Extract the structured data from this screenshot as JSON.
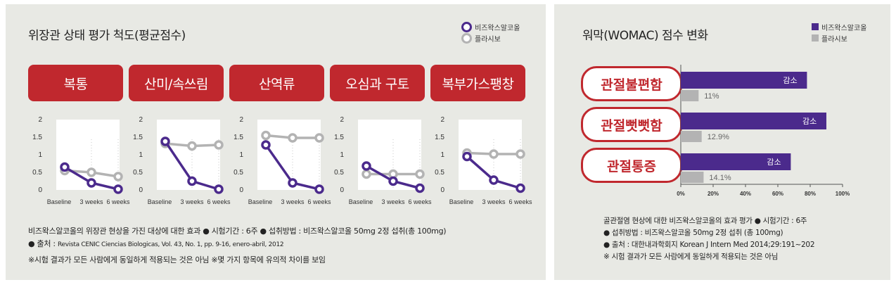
{
  "left": {
    "title": "위장관 상태 평가 척도(평균점수)",
    "legend": [
      {
        "label": "비즈왁스알코올",
        "color": "#4b2a8c"
      },
      {
        "label": "플라시보",
        "color": "#b3b3b3"
      }
    ],
    "footnotes": {
      "line1": "비즈왁스알코올의 위장관 현상을 가진 대상에 대한 효과 ● 시험기간 : 6주 ● 섭취방법 : 비즈왁스알코올 50mg 2정 섭취(총 100mg)",
      "line2_prefix": "● 출처 :",
      "line2_source": "Revista CENIC Ciencias Biologicas, Vol. 43, No. 1, pp. 9-16, enero-abril, 2012",
      "line3": "※시험 결과가 모든 사람에게 동일하게 적용되는 것은 아님 ※몇 가지 항목에 유의적 차이를 보임"
    }
  },
  "right": {
    "title": "워막(WOMAC) 점수 변화",
    "legend": [
      {
        "label": "비즈왁스알코올",
        "color": "#4b2a8c"
      },
      {
        "label": "플라시보",
        "color": "#b3b3b3"
      }
    ],
    "footnotes": {
      "line1": "골관절염 현상에 대한 비즈왁스알코올의 효과 평가 ● 시험기간 : 6주",
      "line2": "● 섭취방법 : 비즈왁스알코올 50mg 2정 섭취 (총 100mg)",
      "line3": "● 출처 : 대한내과학회지 Korean J Intern Med 2014;29:191~202",
      "line4": "※ 시험 결과가 모든 사람에게 동일하게 적용되는 것은 아님"
    }
  },
  "chart_data": [
    {
      "type": "line",
      "title": "복통",
      "x": [
        "Baseline",
        "3 weeks",
        "6 weeks"
      ],
      "ylim": [
        0,
        2
      ],
      "yticks": [
        "0",
        "0.5",
        "1",
        "1.5",
        "2"
      ],
      "series": [
        {
          "name": "비즈왁스알코올",
          "values": [
            0.65,
            0.2,
            0.02
          ]
        },
        {
          "name": "플라시보",
          "values": [
            0.55,
            0.5,
            0.38
          ]
        }
      ]
    },
    {
      "type": "line",
      "title": "산미/속쓰림",
      "x": [
        "Baseline",
        "3 weeks",
        "6 weeks"
      ],
      "ylim": [
        0,
        2
      ],
      "yticks": [
        "0",
        "0.5",
        "1",
        "1.5",
        "2"
      ],
      "series": [
        {
          "name": "비즈왁스알코올",
          "values": [
            1.38,
            0.25,
            0.02
          ]
        },
        {
          "name": "플라시보",
          "values": [
            1.32,
            1.25,
            1.28
          ]
        }
      ]
    },
    {
      "type": "line",
      "title": "산역류",
      "x": [
        "Baseline",
        "3 weeks",
        "6 weeks"
      ],
      "ylim": [
        0,
        2
      ],
      "yticks": [
        "0",
        "0.5",
        "1",
        "1.5",
        "2"
      ],
      "series": [
        {
          "name": "비즈왁스알코올",
          "values": [
            1.28,
            0.2,
            0.02
          ]
        },
        {
          "name": "플라시보",
          "values": [
            1.55,
            1.48,
            1.48
          ]
        }
      ]
    },
    {
      "type": "line",
      "title": "오심과 구토",
      "x": [
        "Baseline",
        "3 weeks",
        "6 weeks"
      ],
      "ylim": [
        0,
        2
      ],
      "yticks": [
        "0",
        "0.5",
        "1",
        "1.5",
        "2"
      ],
      "series": [
        {
          "name": "비즈왁스알코올",
          "values": [
            0.68,
            0.25,
            0.05
          ]
        },
        {
          "name": "플라시보",
          "values": [
            0.45,
            0.45,
            0.45
          ]
        }
      ]
    },
    {
      "type": "line",
      "title": "복부가스팽창",
      "x": [
        "Baseline",
        "3 weeks",
        "6 weeks"
      ],
      "ylim": [
        0,
        2
      ],
      "yticks": [
        "0",
        "0.5",
        "1",
        "1.5",
        "2"
      ],
      "series": [
        {
          "name": "비즈왁스알코올",
          "values": [
            0.95,
            0.28,
            0.05
          ]
        },
        {
          "name": "플라시보",
          "values": [
            1.05,
            1.02,
            1.02
          ]
        }
      ]
    },
    {
      "type": "bar",
      "orientation": "horizontal",
      "title": "워막(WOMAC) 점수 변화",
      "categories": [
        "관절불편함",
        "관절뻣뻣함",
        "관절통증"
      ],
      "xticks": [
        "0%",
        "20%",
        "40%",
        "60%",
        "80%",
        "100%"
      ],
      "xlim": [
        0,
        100
      ],
      "series": [
        {
          "name": "비즈왁스알코올",
          "values": [
            78,
            90,
            68
          ],
          "labels": [
            "감소",
            "감소",
            "감소"
          ]
        },
        {
          "name": "플라시보",
          "values": [
            11,
            12.9,
            14.1
          ],
          "labels": [
            "11%",
            "12.9%",
            "14.1%"
          ]
        }
      ]
    }
  ]
}
